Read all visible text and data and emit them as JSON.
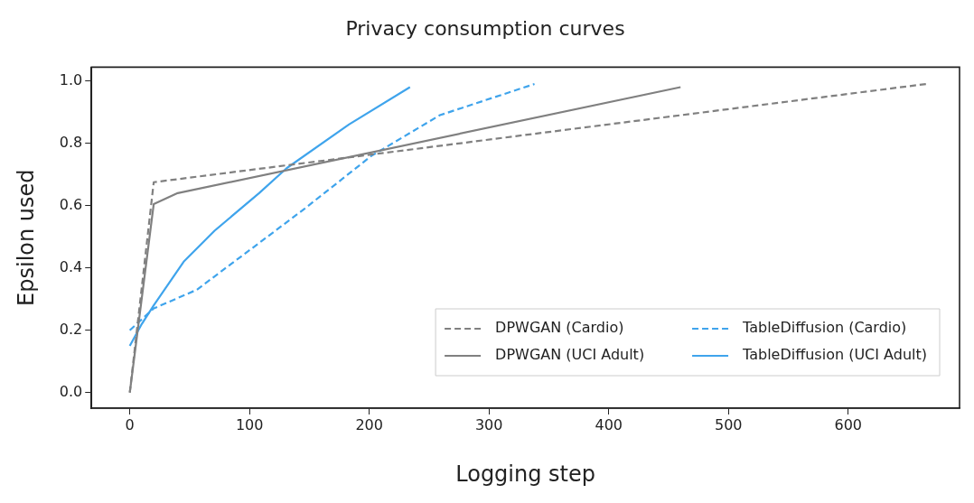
{
  "chart_data": {
    "type": "line",
    "title": "Privacy consumption curves",
    "xlabel": "Logging step",
    "ylabel": "Epsilon used",
    "xlim": [
      -32,
      693
    ],
    "ylim": [
      -0.05,
      1.044
    ],
    "xticks": [
      0,
      100,
      200,
      300,
      400,
      500,
      600
    ],
    "yticks": [
      {
        "value": 0,
        "label": "0.0"
      },
      {
        "value": 0.2,
        "label": "0.2"
      },
      {
        "value": 0.4,
        "label": "0.4"
      },
      {
        "value": 0.6,
        "label": "0.6"
      },
      {
        "value": 0.8,
        "label": "0.8"
      },
      {
        "value": 1,
        "label": "1.0"
      }
    ],
    "grid": false,
    "legend": "bottom right",
    "marker": "none",
    "series": [
      {
        "name": "DPWGAN (Cardio)",
        "color": "#808080",
        "line_style": "dashed",
        "x": [
          0,
          20,
          665
        ],
        "values": [
          0,
          0.675,
          0.99
        ]
      },
      {
        "name": "DPWGAN (UCI Adult)",
        "color": "#808080",
        "line_style": "solid",
        "x": [
          0,
          20,
          40,
          460
        ],
        "values": [
          0,
          0.605,
          0.64,
          0.98
        ]
      },
      {
        "name": "TableDiffusion (Cardio)",
        "color": "#3fa4ec",
        "line_style": "dashed",
        "x": [
          0,
          20,
          56,
          108,
          146,
          202,
          259,
          338
        ],
        "values": [
          0.2,
          0.27,
          0.33,
          0.48,
          0.59,
          0.76,
          0.89,
          0.99
        ]
      },
      {
        "name": "TableDiffusion (UCI Adult)",
        "color": "#3fa4ec",
        "line_style": "solid",
        "x": [
          0,
          10,
          20,
          45,
          71,
          108,
          131,
          183,
          234
        ],
        "values": [
          0.15,
          0.22,
          0.28,
          0.42,
          0.52,
          0.64,
          0.72,
          0.86,
          0.98
        ]
      }
    ]
  }
}
